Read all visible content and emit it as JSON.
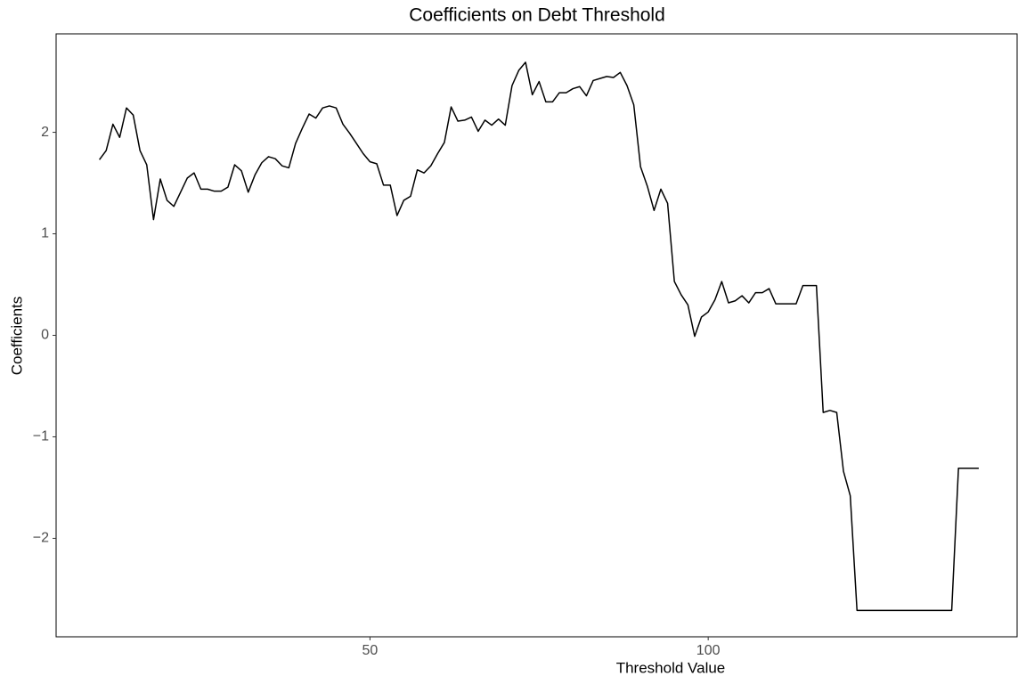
{
  "chart_data": {
    "type": "line",
    "title": "Coefficients on Debt Threshold",
    "x_label": "Threshold Value",
    "y_label": "Coefficients",
    "x": [
      10,
      11,
      12,
      13,
      14,
      15,
      16,
      17,
      18,
      19,
      20,
      21,
      22,
      23,
      24,
      25,
      26,
      27,
      28,
      29,
      30,
      31,
      32,
      33,
      34,
      35,
      36,
      37,
      38,
      39,
      40,
      41,
      42,
      43,
      44,
      45,
      46,
      47,
      48,
      49,
      50,
      51,
      52,
      53,
      54,
      55,
      56,
      57,
      58,
      59,
      60,
      61,
      62,
      63,
      64,
      65,
      66,
      67,
      68,
      69,
      70,
      71,
      72,
      73,
      74,
      75,
      76,
      77,
      78,
      79,
      80,
      81,
      82,
      83,
      84,
      85,
      86,
      87,
      88,
      89,
      90,
      91,
      92,
      93,
      94,
      95,
      96,
      97,
      98,
      99,
      100,
      101,
      102,
      103,
      104,
      105,
      106,
      107,
      108,
      109,
      110,
      111,
      112,
      113,
      114,
      115,
      116,
      117,
      118,
      119,
      120,
      121,
      122,
      123,
      124,
      125,
      126,
      127,
      128,
      129,
      130,
      131,
      132,
      133,
      134,
      135,
      136,
      137,
      138,
      139,
      140
    ],
    "values": [
      1.73,
      1.82,
      2.08,
      1.95,
      2.24,
      2.17,
      1.82,
      1.68,
      1.14,
      1.54,
      1.33,
      1.27,
      1.41,
      1.55,
      1.6,
      1.44,
      1.44,
      1.42,
      1.42,
      1.46,
      1.68,
      1.62,
      1.41,
      1.58,
      1.7,
      1.76,
      1.74,
      1.67,
      1.65,
      1.89,
      2.04,
      2.18,
      2.14,
      2.24,
      2.26,
      2.24,
      2.08,
      1.99,
      1.89,
      1.79,
      1.71,
      1.69,
      1.48,
      1.48,
      1.18,
      1.33,
      1.37,
      1.63,
      1.6,
      1.67,
      1.79,
      1.9,
      2.25,
      2.11,
      2.12,
      2.15,
      2.01,
      2.12,
      2.07,
      2.13,
      2.07,
      2.46,
      2.61,
      2.69,
      2.37,
      2.5,
      2.3,
      2.3,
      2.39,
      2.39,
      2.43,
      2.45,
      2.36,
      2.51,
      2.53,
      2.55,
      2.54,
      2.59,
      2.46,
      2.27,
      1.66,
      1.47,
      1.23,
      1.44,
      1.3,
      0.53,
      0.4,
      0.3,
      -0.01,
      0.18,
      0.23,
      0.35,
      0.53,
      0.32,
      0.34,
      0.39,
      0.32,
      0.42,
      0.42,
      0.46,
      0.31,
      0.31,
      0.31,
      0.31,
      0.49,
      0.49,
      0.49,
      -0.76,
      -0.74,
      -0.76,
      -1.34,
      -1.58,
      -2.71,
      -2.71,
      -2.71,
      -2.71,
      -2.71,
      -2.71,
      -2.71,
      -2.71,
      -2.71,
      -2.71,
      -2.71,
      -2.71,
      -2.71,
      -2.71,
      -2.71,
      -1.31,
      -1.31,
      -1.31,
      -1.31
    ],
    "color": "#000000",
    "xlim": [
      3.6,
      145.8
    ],
    "xticks": [
      50,
      100
    ],
    "ylim": [
      -2.97,
      2.97
    ],
    "yticks": [
      {
        "value": -2,
        "label": "−2"
      },
      {
        "value": -1,
        "label": "−1"
      },
      0,
      1,
      2
    ],
    "grid": false
  }
}
